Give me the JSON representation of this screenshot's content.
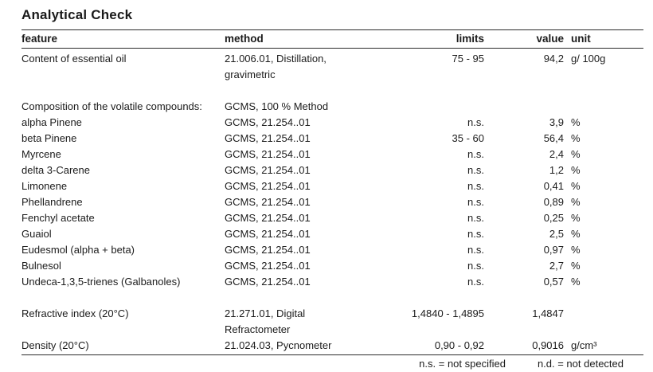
{
  "title": "Analytical Check",
  "colors": {
    "text": "#1b1b1b",
    "rule": "#2b2b2b",
    "background": "#ffffff"
  },
  "columns": [
    {
      "key": "feature",
      "label": "feature"
    },
    {
      "key": "method",
      "label": "method"
    },
    {
      "key": "limits",
      "label": "limits"
    },
    {
      "key": "value",
      "label": "value"
    },
    {
      "key": "unit",
      "label": "unit"
    }
  ],
  "rows": [
    {
      "feature": "Content of essential oil",
      "method": "21.006.01, Distillation,\ngravimetric",
      "limits": "75 - 95",
      "value": "94,2",
      "unit": "g/ 100g"
    },
    {
      "spacer": true
    },
    {
      "feature": "Composition of the volatile compounds:",
      "method": "GCMS, 100 % Method",
      "limits": "",
      "value": "",
      "unit": ""
    },
    {
      "feature": "alpha Pinene",
      "method": "GCMS, 21.254..01",
      "limits": "n.s.",
      "value": "3,9",
      "unit": "%"
    },
    {
      "feature": "beta Pinene",
      "method": "GCMS, 21.254..01",
      "limits": "35 - 60",
      "value": "56,4",
      "unit": "%"
    },
    {
      "feature": "Myrcene",
      "method": "GCMS, 21.254..01",
      "limits": "n.s.",
      "value": "2,4",
      "unit": "%"
    },
    {
      "feature": "delta 3-Carene",
      "method": "GCMS, 21.254..01",
      "limits": "n.s.",
      "value": "1,2",
      "unit": "%"
    },
    {
      "feature": "Limonene",
      "method": "GCMS, 21.254..01",
      "limits": "n.s.",
      "value": "0,41",
      "unit": "%"
    },
    {
      "feature": "Phellandrene",
      "method": "GCMS, 21.254..01",
      "limits": "n.s.",
      "value": "0,89",
      "unit": "%"
    },
    {
      "feature": "Fenchyl acetate",
      "method": "GCMS, 21.254..01",
      "limits": "n.s.",
      "value": "0,25",
      "unit": "%"
    },
    {
      "feature": "Guaiol",
      "method": "GCMS, 21.254..01",
      "limits": "n.s.",
      "value": "2,5",
      "unit": "%"
    },
    {
      "feature": "Eudesmol (alpha + beta)",
      "method": "GCMS, 21.254..01",
      "limits": "n.s.",
      "value": "0,97",
      "unit": "%"
    },
    {
      "feature": "Bulnesol",
      "method": "GCMS, 21.254..01",
      "limits": "n.s.",
      "value": "2,7",
      "unit": "%"
    },
    {
      "feature": "Undeca-1,3,5-trienes (Galbanoles)",
      "method": "GCMS, 21.254..01",
      "limits": "n.s.",
      "value": "0,57",
      "unit": "%"
    },
    {
      "spacer": true
    },
    {
      "feature": "Refractive index (20°C)",
      "method": "21.271.01, Digital\nRefractometer",
      "limits": "1,4840 - 1,4895",
      "value": "1,4847",
      "unit": ""
    },
    {
      "feature": "Density (20°C)",
      "method": "21.024.03, Pycnometer",
      "limits": "0,90 - 0,92",
      "value": "0,9016",
      "unit": "g/cm³"
    }
  ],
  "legend": {
    "ns": "n.s. = not specified",
    "nd": "n.d. = not detected"
  }
}
